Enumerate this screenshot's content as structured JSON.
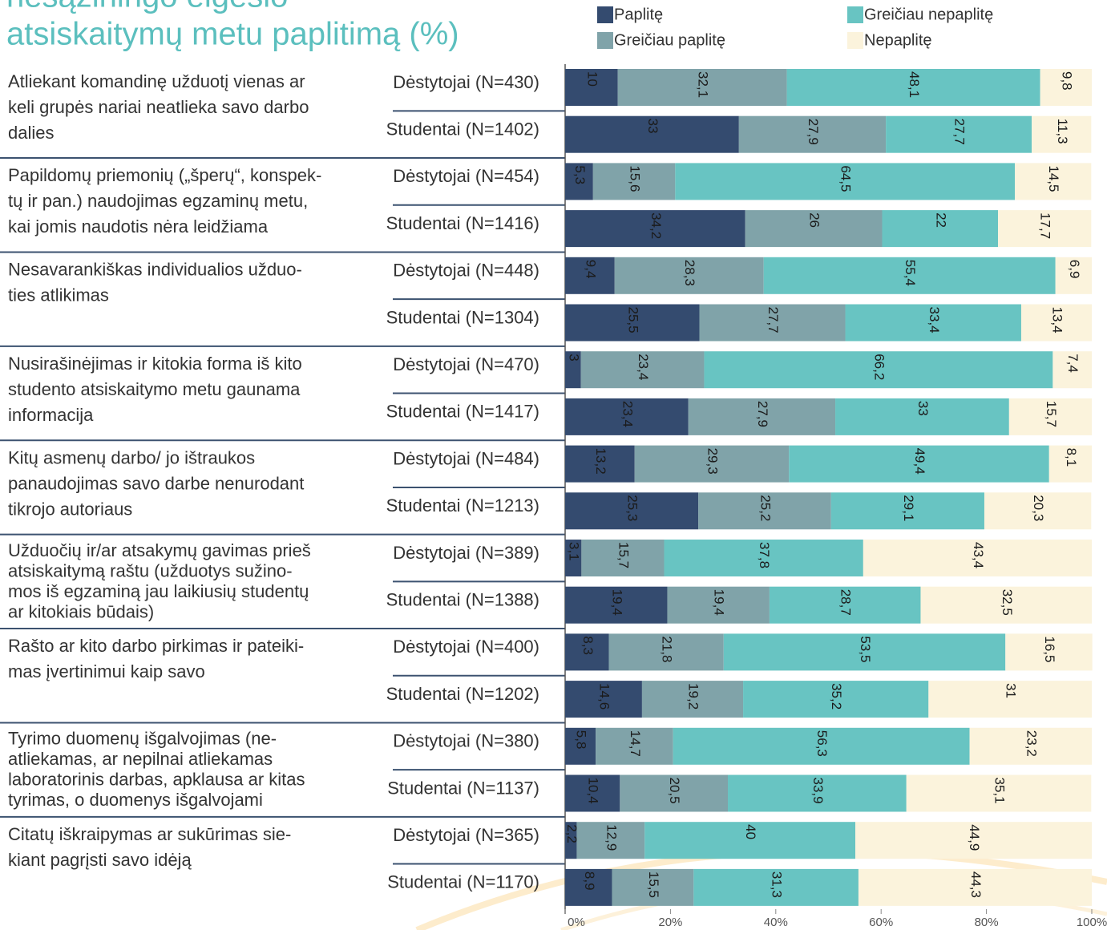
{
  "chart_data": {
    "type": "stacked_barh",
    "title_lines": [
      "nesąžiningo elgesio",
      "atsiskaitymų metu paplitimą (%)"
    ],
    "groups": [
      [
        "Atliekant komandinę užduotį vienas ar",
        "keli grupės nariai neatlieka savo darbo",
        "dalies"
      ],
      [
        "Papildomų priemonių („šperų“, konspek-",
        "tų ir pan.) naudojimas egzaminų metu,",
        "kai jomis naudotis nėra leidžiama"
      ],
      [
        "Nesavarankiškas individualios užduo-",
        "ties atlikimas"
      ],
      [
        "Nusirašinėjimas ir kitokia forma iš  kito",
        "studento atsiskaitymo metu gaunama",
        "informacija"
      ],
      [
        "Kitų asmenų darbo/ jo ištraukos",
        "panaudojimas savo darbe nenurodant",
        "tikrojo autoriaus"
      ],
      [
        "Užduočių ir/ar atsakymų gavimas prieš",
        "atsiskaitymą raštu (užduotys sužino-",
        "mos iš egzaminą jau laikiusių studentų",
        "ar kitokiais būdais)"
      ],
      [
        "Rašto ar kito darbo pirkimas ir pateiki-",
        "mas įvertinimui kaip savo"
      ],
      [
        "Tyrimo duomenų išgalvojimas  (ne-",
        "atliekamas, ar nepilnai atliekamas",
        "laboratorinis darbas, apklausa ar kitas",
        "tyrimas, o duomenys išgalvojami"
      ],
      [
        "Citatų iškraipymas ar sukūrimas sie-",
        "kiant pagrįsti savo idėją"
      ]
    ],
    "categories": [
      "Dėstytojai (N=430)",
      "Studentai (N=1402)",
      "Dėstytojai (N=454)",
      "Studentai (N=1416)",
      "Dėstytojai (N=448)",
      "Studentai (N=1304)",
      "Dėstytojai (N=470)",
      "Studentai (N=1417)",
      "Dėstytojai (N=484)",
      "Studentai (N=1213)",
      "Dėstytojai (N=389)",
      "Studentai (N=1388)",
      "Dėstytojai (N=400)",
      "Studentai (N=1202)",
      "Dėstytojai  (N=380)",
      "Studentai (N=1137)",
      "Dėstytojai (N=365)",
      "Studentai (N=1170)"
    ],
    "series": [
      {
        "name": "Paplitę",
        "color": "#344b6f",
        "values": [
          10,
          33,
          5.3,
          34.2,
          9.4,
          25.5,
          3,
          23.4,
          13.2,
          25.3,
          3.1,
          19.4,
          8.3,
          14.6,
          5.8,
          10.4,
          2.2,
          8.9
        ],
        "value_labels": [
          "10",
          "33",
          "5,3",
          "34,2",
          "9,4",
          "25,5",
          "3",
          "23,4",
          "13,2",
          "25,3",
          "3,1",
          "19,4",
          "8,3",
          "14,6",
          "5,8",
          "10,4",
          "2,2",
          "8,9"
        ]
      },
      {
        "name": "Greičiau paplitę",
        "color": "#80a3a9",
        "values": [
          32.1,
          27.9,
          15.6,
          26,
          28.3,
          27.7,
          23.4,
          27.9,
          29.3,
          25.2,
          15.7,
          19.4,
          21.8,
          19.2,
          14.7,
          20.5,
          12.9,
          15.5
        ],
        "value_labels": [
          "32,1",
          "27,9",
          "15,6",
          "26",
          "28,3",
          "27,7",
          "23,4",
          "27,9",
          "29,3",
          "25,2",
          "15,7",
          "19,4",
          "21,8",
          "19,2",
          "14,7",
          "20,5",
          "12,9",
          "15,5"
        ]
      },
      {
        "name": "Greičiau nepaplitę",
        "color": "#68c4c2",
        "values": [
          48.1,
          27.7,
          64.5,
          22,
          55.4,
          33.4,
          66.2,
          33,
          49.4,
          29.1,
          37.8,
          28.7,
          53.5,
          35.2,
          56.3,
          33.9,
          40,
          31.3
        ],
        "value_labels": [
          "48,1",
          "27,7",
          "64,5",
          "22",
          "55,4",
          "33,4",
          "66,2",
          "33",
          "49,4",
          "29,1",
          "37,8",
          "28,7",
          "53,5",
          "35,2",
          "56,3",
          "33,9",
          "40",
          "31,3"
        ]
      },
      {
        "name": "Nepaplitę",
        "color": "#fbf3dc",
        "values": [
          9.8,
          11.3,
          14.5,
          17.7,
          6.9,
          13.4,
          7.4,
          15.7,
          8.1,
          20.3,
          43.4,
          32.5,
          16.5,
          31,
          23.2,
          35.1,
          44.9,
          44.3
        ],
        "value_labels": [
          "9,8",
          "11,3",
          "14,5",
          "17,7",
          "6,9",
          "13,4",
          "7,4",
          "15,7",
          "8,1",
          "20,3",
          "43,4",
          "32,5",
          "16,5",
          "31",
          "23,2",
          "35,1",
          "44,9",
          "44,3"
        ]
      }
    ],
    "xlim": [
      0,
      100
    ],
    "xticks": [
      {
        "value": 0,
        "label": "0%"
      },
      {
        "value": 20,
        "label": "20%"
      },
      {
        "value": 40,
        "label": "40%"
      },
      {
        "value": 60,
        "label": "60%"
      },
      {
        "value": 80,
        "label": "80%"
      },
      {
        "value": 100,
        "label": "100%"
      }
    ]
  }
}
